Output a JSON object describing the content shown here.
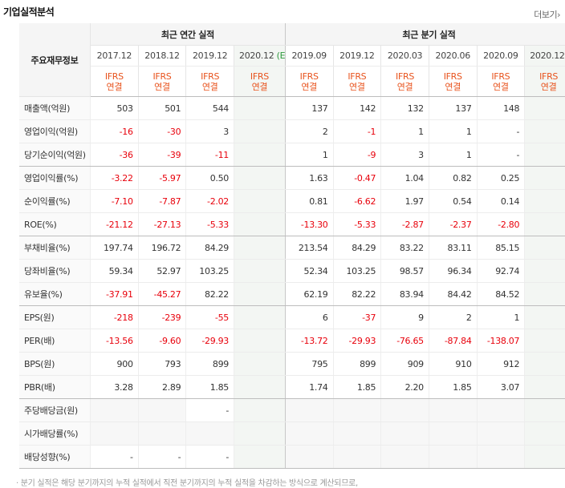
{
  "title": "기업실적분석",
  "more_label": "더보기",
  "table": {
    "corner_label": "주요재무정보",
    "annual_label": "최근 연간 실적",
    "quarter_label": "최근 분기 실적",
    "est_mark": "(E)",
    "annual_periods": [
      "2017.12",
      "2018.12",
      "2019.12",
      "2020.12"
    ],
    "quarter_periods": [
      "2019.09",
      "2019.12",
      "2020.03",
      "2020.06",
      "2020.09",
      "2020.12"
    ],
    "ifrs_label": "IFRS",
    "consolidated_label": "연결",
    "rows": [
      {
        "label": "매출액(억원)",
        "values": [
          "503",
          "501",
          "544",
          "",
          "137",
          "142",
          "132",
          "137",
          "148",
          ""
        ]
      },
      {
        "label": "영업이익(억원)",
        "values": [
          "-16",
          "-30",
          "3",
          "",
          "2",
          "-1",
          "1",
          "1",
          "-",
          ""
        ]
      },
      {
        "label": "당기순이익(억원)",
        "values": [
          "-36",
          "-39",
          "-11",
          "",
          "1",
          "-9",
          "3",
          "1",
          "-",
          ""
        ]
      },
      {
        "label": "영업이익률(%)",
        "values": [
          "-3.22",
          "-5.97",
          "0.50",
          "",
          "1.63",
          "-0.47",
          "1.04",
          "0.82",
          "0.25",
          ""
        ]
      },
      {
        "label": "순이익률(%)",
        "values": [
          "-7.10",
          "-7.87",
          "-2.02",
          "",
          "0.81",
          "-6.62",
          "1.97",
          "0.54",
          "0.14",
          ""
        ]
      },
      {
        "label": "ROE(%)",
        "values": [
          "-21.12",
          "-27.13",
          "-5.33",
          "",
          "-13.30",
          "-5.33",
          "-2.87",
          "-2.37",
          "-2.80",
          ""
        ]
      },
      {
        "label": "부채비율(%)",
        "values": [
          "197.74",
          "196.72",
          "84.29",
          "",
          "213.54",
          "84.29",
          "83.22",
          "83.11",
          "85.15",
          ""
        ]
      },
      {
        "label": "당좌비율(%)",
        "values": [
          "59.34",
          "52.97",
          "103.25",
          "",
          "52.34",
          "103.25",
          "98.57",
          "96.34",
          "92.74",
          ""
        ]
      },
      {
        "label": "유보율(%)",
        "values": [
          "-37.91",
          "-45.27",
          "82.22",
          "",
          "62.19",
          "82.22",
          "83.94",
          "84.42",
          "84.52",
          ""
        ]
      },
      {
        "label": "EPS(원)",
        "values": [
          "-218",
          "-239",
          "-55",
          "",
          "6",
          "-37",
          "9",
          "2",
          "1",
          ""
        ]
      },
      {
        "label": "PER(배)",
        "values": [
          "-13.56",
          "-9.60",
          "-29.93",
          "",
          "-13.72",
          "-29.93",
          "-76.65",
          "-87.84",
          "-138.07",
          ""
        ]
      },
      {
        "label": "BPS(원)",
        "values": [
          "900",
          "793",
          "899",
          "",
          "795",
          "899",
          "909",
          "910",
          "912",
          ""
        ]
      },
      {
        "label": "PBR(배)",
        "values": [
          "3.28",
          "2.89",
          "1.85",
          "",
          "1.74",
          "1.85",
          "2.20",
          "1.85",
          "3.07",
          ""
        ]
      },
      {
        "label": "주당배당금(원)",
        "values": [
          "",
          "",
          "-",
          "",
          "",
          "",
          "",
          "",
          "",
          ""
        ]
      },
      {
        "label": "시가배당률(%)",
        "values": [
          "",
          "",
          "",
          "",
          "",
          "",
          "",
          "",
          "",
          ""
        ]
      },
      {
        "label": "배당성향(%)",
        "values": [
          "-",
          "-",
          "-",
          "",
          "",
          "",
          "",
          "",
          "",
          ""
        ]
      }
    ]
  },
  "footnote": "· 분기 실적은 해당 분기까지의 누적 실적에서 직전 분기까지의 누적 실적을 차감하는 방식으로 계산되므로,"
}
